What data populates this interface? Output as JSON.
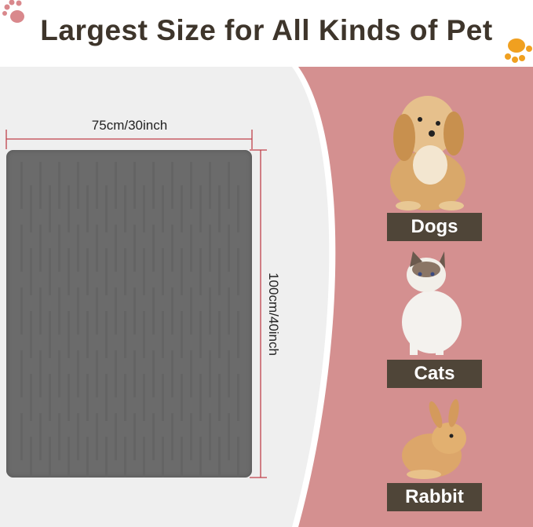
{
  "title": "Largest Size for All Kinds of Pet",
  "dimensions": {
    "width": "75cm/30inch",
    "height": "100cm/40inch"
  },
  "pets": [
    {
      "label": "Dogs"
    },
    {
      "label": "Cats"
    },
    {
      "label": "Rabbit"
    }
  ],
  "colors": {
    "title": "#3e352b",
    "panel_left": "#efefef",
    "panel_right": "#d49090",
    "mat": "#6b6b6b",
    "measure_line": "#c0404a",
    "tag": "#4f4538",
    "paw_left": "#d9888c",
    "paw_right": "#f0a020"
  },
  "icons": [
    "paw-icon",
    "paw-icon"
  ]
}
